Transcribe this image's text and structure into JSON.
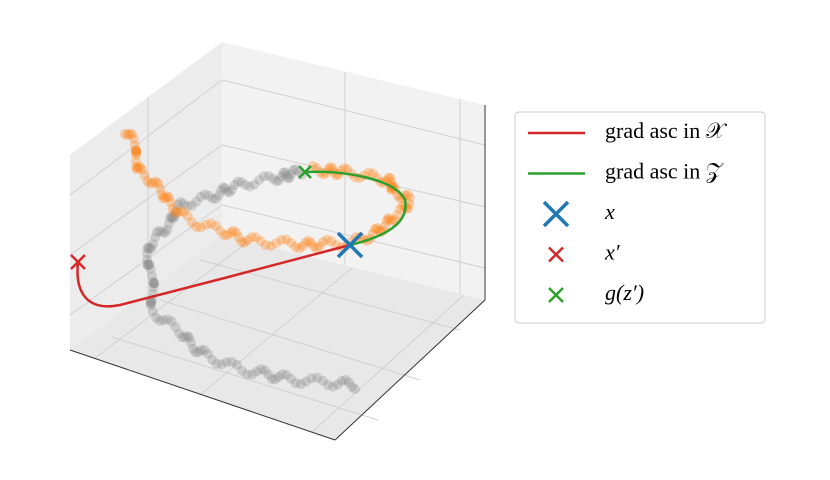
{
  "legend": [
    {
      "label": "grad asc in 𝒳",
      "marker": "line",
      "color": "#d62728"
    },
    {
      "label": "grad asc in 𝒵",
      "marker": "line",
      "color": "#2ca02c"
    },
    {
      "label": "x",
      "marker": "big-cross",
      "color": "#1f77b4"
    },
    {
      "label": "x′",
      "marker": "cross",
      "color": "#d62728"
    },
    {
      "label": "g(z′)",
      "marker": "cross",
      "color": "#2ca02c"
    }
  ]
}
